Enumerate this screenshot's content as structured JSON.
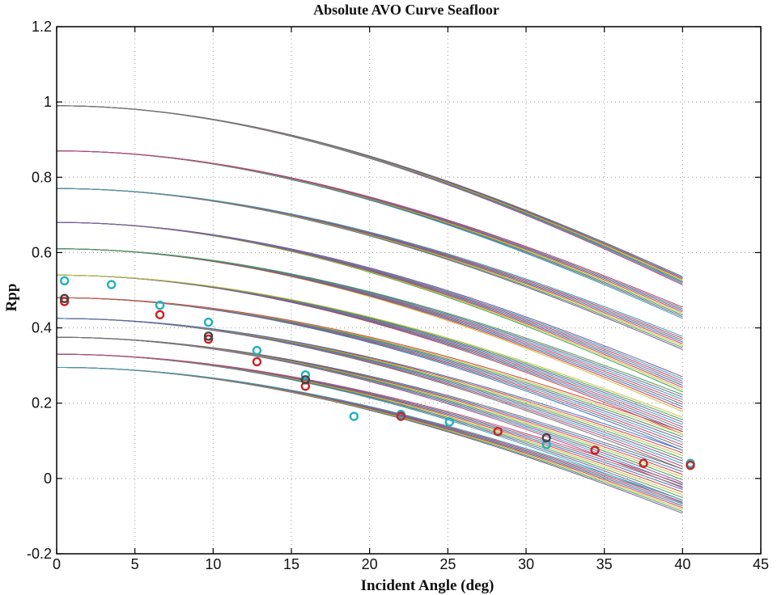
{
  "chart_data": {
    "type": "line",
    "title": "Absolute AVO Curve Seafloor",
    "xlabel": "Incident Angle (deg)",
    "ylabel": "Rpp",
    "xlim": [
      0,
      45
    ],
    "ylim": [
      -0.2,
      1.2
    ],
    "xticks": [
      0,
      5,
      10,
      15,
      20,
      25,
      30,
      35,
      40,
      45
    ],
    "xtick_labels": [
      "0",
      "5",
      "10",
      "15",
      "20",
      "25",
      "30",
      "35",
      "40",
      "45"
    ],
    "yticks": [
      -0.2,
      0,
      0.2,
      0.4,
      0.6,
      0.8,
      1,
      1.2
    ],
    "ytick_labels": [
      "-0.2",
      "0",
      "0.2",
      "0.4",
      "0.6",
      "0.8",
      "1",
      "1.2"
    ],
    "grid": true,
    "curve_x_range": [
      0,
      40
    ],
    "curve_bundles": [
      {
        "r0": 0.99,
        "r40": 0.525,
        "spread": 0.022
      },
      {
        "r0": 0.87,
        "r40": 0.44,
        "spread": 0.03
      },
      {
        "r0": 0.77,
        "r40": 0.36,
        "spread": 0.035
      },
      {
        "r0": 0.68,
        "r40": 0.25,
        "spread": 0.04
      },
      {
        "r0": 0.61,
        "r40": 0.2,
        "spread": 0.045
      },
      {
        "r0": 0.54,
        "r40": 0.14,
        "spread": 0.045
      },
      {
        "r0": 0.48,
        "r40": 0.1,
        "spread": 0.05
      },
      {
        "r0": 0.425,
        "r40": 0.05,
        "spread": 0.05
      },
      {
        "r0": 0.375,
        "r40": 0.0,
        "spread": 0.05
      },
      {
        "r0": 0.33,
        "r40": -0.04,
        "spread": 0.05
      },
      {
        "r0": 0.295,
        "r40": -0.075,
        "spread": 0.035
      }
    ],
    "curve_colors": [
      "#c0407a",
      "#3aa0b0",
      "#7a5aa0",
      "#40a050",
      "#c8c040",
      "#d04040",
      "#4070c0",
      "#707070"
    ],
    "observations": [
      {
        "color": "#20b0c0",
        "points": [
          [
            0.5,
            0.525
          ],
          [
            3.5,
            0.515
          ],
          [
            6.6,
            0.46
          ],
          [
            9.7,
            0.415
          ],
          [
            12.8,
            0.34
          ],
          [
            15.9,
            0.275
          ],
          [
            19.0,
            0.165
          ],
          [
            22.0,
            0.17
          ],
          [
            25.1,
            0.15
          ],
          [
            28.2,
            0.125
          ],
          [
            31.3,
            0.09
          ],
          [
            40.5,
            0.04
          ]
        ]
      },
      {
        "color": "#cc2222",
        "points": [
          [
            0.5,
            0.47
          ],
          [
            6.6,
            0.435
          ],
          [
            9.7,
            0.37
          ],
          [
            12.8,
            0.31
          ],
          [
            15.9,
            0.245
          ],
          [
            22.0,
            0.165
          ],
          [
            28.2,
            0.125
          ],
          [
            34.4,
            0.075
          ],
          [
            37.5,
            0.04
          ],
          [
            40.5,
            0.035
          ]
        ]
      },
      {
        "color": "#444444",
        "points": [
          [
            0.5,
            0.478
          ],
          [
            9.7,
            0.378
          ],
          [
            15.9,
            0.262
          ],
          [
            31.3,
            0.108
          ]
        ]
      }
    ]
  }
}
